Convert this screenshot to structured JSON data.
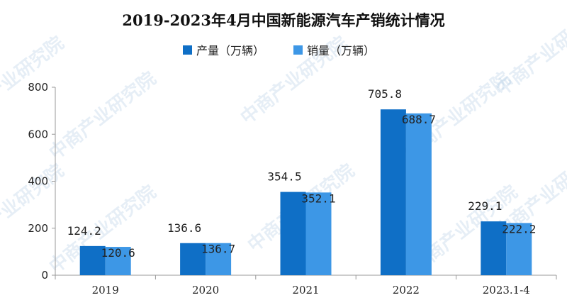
{
  "colors": {
    "production": "#0f6fc6",
    "sales": "#3d97e6",
    "axis": "#999999",
    "watermark": "#8fb7d8"
  },
  "watermark_text": "中商产业研究院",
  "chart_data": {
    "type": "bar",
    "title": "2019-2023年4月中国新能源汽车产销统计情况",
    "categories": [
      "2019",
      "2020",
      "2021",
      "2022",
      "2023.1-4"
    ],
    "series": [
      {
        "name": "产量（万辆）",
        "values": [
          124.2,
          136.6,
          354.5,
          705.8,
          229.1
        ]
      },
      {
        "name": "销量（万辆）",
        "values": [
          120.6,
          136.7,
          352.1,
          688.7,
          222.2
        ]
      }
    ],
    "ylim": [
      0,
      800
    ],
    "yticks": [
      0,
      200,
      400,
      600,
      800
    ],
    "xlabel": "",
    "ylabel": "",
    "legend": "top-center",
    "grid": false
  }
}
